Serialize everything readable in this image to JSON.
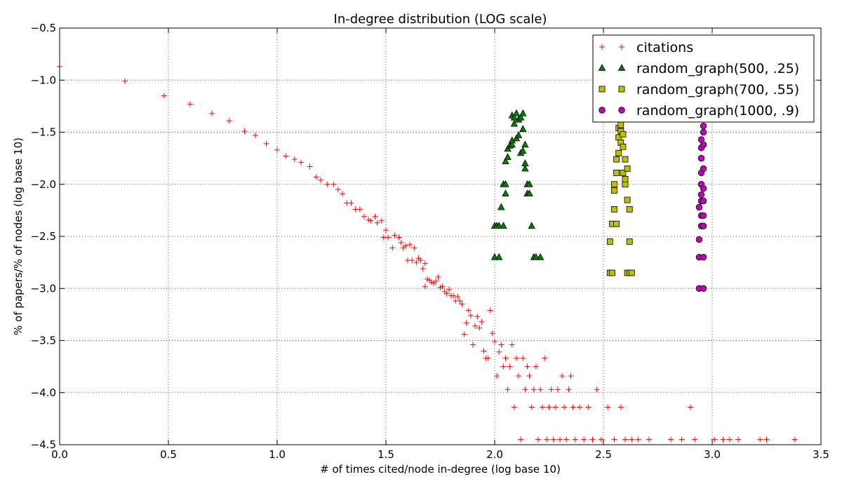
{
  "chart_data": {
    "type": "scatter",
    "title": "In-degree distribution (LOG scale)",
    "xlabel": "# of times cited/node in-degree (log base 10)",
    "ylabel": "% of papers/% of nodes (log base 10)",
    "xlim": [
      0.0,
      3.5
    ],
    "ylim": [
      -4.5,
      -0.5
    ],
    "xticks": [
      0.0,
      0.5,
      1.0,
      1.5,
      2.0,
      2.5,
      3.0,
      3.5
    ],
    "yticks": [
      -4.5,
      -4.0,
      -3.5,
      -3.0,
      -2.5,
      -2.0,
      -1.5,
      -1.0,
      -0.5
    ],
    "xtick_labels": [
      "0.0",
      "0.5",
      "1.0",
      "1.5",
      "2.0",
      "2.5",
      "3.0",
      "3.5"
    ],
    "ytick_labels": [
      "−4.5",
      "−4.0",
      "−3.5",
      "−3.0",
      "−2.5",
      "−2.0",
      "−1.5",
      "−1.0",
      "−0.5"
    ],
    "grid": true,
    "legend_position": "top-right",
    "series": [
      {
        "name": "citations",
        "marker": "plus",
        "color": "#ff0000",
        "points": [
          [
            0.0,
            -0.87
          ],
          [
            0.3,
            -1.01
          ],
          [
            0.48,
            -1.15
          ],
          [
            0.6,
            -1.23
          ],
          [
            0.7,
            -1.32
          ],
          [
            0.78,
            -1.39
          ],
          [
            0.85,
            -1.49
          ],
          [
            0.9,
            -1.53
          ],
          [
            0.95,
            -1.61
          ],
          [
            1.0,
            -1.67
          ],
          [
            1.04,
            -1.73
          ],
          [
            1.08,
            -1.76
          ],
          [
            1.11,
            -1.79
          ],
          [
            1.15,
            -1.83
          ],
          [
            1.18,
            -1.93
          ],
          [
            1.2,
            -1.96
          ],
          [
            1.23,
            -2.0
          ],
          [
            1.26,
            -2.0
          ],
          [
            1.28,
            -2.05
          ],
          [
            1.3,
            -2.09
          ],
          [
            1.32,
            -2.18
          ],
          [
            1.34,
            -2.18
          ],
          [
            1.36,
            -2.24
          ],
          [
            1.38,
            -2.24
          ],
          [
            1.4,
            -2.31
          ],
          [
            1.42,
            -2.34
          ],
          [
            1.43,
            -2.35
          ],
          [
            1.45,
            -2.31
          ],
          [
            1.46,
            -2.37
          ],
          [
            1.48,
            -2.35
          ],
          [
            1.49,
            -2.51
          ],
          [
            1.5,
            -2.44
          ],
          [
            1.51,
            -2.51
          ],
          [
            1.53,
            -2.61
          ],
          [
            1.54,
            -2.49
          ],
          [
            1.56,
            -2.51
          ],
          [
            1.57,
            -2.56
          ],
          [
            1.58,
            -2.61
          ],
          [
            1.59,
            -2.59
          ],
          [
            1.6,
            -2.73
          ],
          [
            1.61,
            -2.58
          ],
          [
            1.62,
            -2.73
          ],
          [
            1.63,
            -2.61
          ],
          [
            1.64,
            -2.75
          ],
          [
            1.65,
            -2.71
          ],
          [
            1.66,
            -2.73
          ],
          [
            1.67,
            -2.81
          ],
          [
            1.68,
            -2.98
          ],
          [
            1.68,
            -2.76
          ],
          [
            1.69,
            -2.91
          ],
          [
            1.7,
            -2.92
          ],
          [
            1.71,
            -2.94
          ],
          [
            1.72,
            -2.95
          ],
          [
            1.73,
            -2.93
          ],
          [
            1.74,
            -2.89
          ],
          [
            1.75,
            -2.99
          ],
          [
            1.76,
            -2.98
          ],
          [
            1.77,
            -3.03
          ],
          [
            1.78,
            -3.05
          ],
          [
            1.79,
            -3.01
          ],
          [
            1.8,
            -3.07
          ],
          [
            1.81,
            -3.07
          ],
          [
            1.82,
            -3.12
          ],
          [
            1.83,
            -3.08
          ],
          [
            1.84,
            -3.12
          ],
          [
            1.85,
            -3.15
          ],
          [
            1.86,
            -3.44
          ],
          [
            1.87,
            -3.33
          ],
          [
            1.88,
            -3.21
          ],
          [
            1.89,
            -3.26
          ],
          [
            1.9,
            -3.54
          ],
          [
            1.91,
            -3.36
          ],
          [
            1.92,
            -3.27
          ],
          [
            1.93,
            -3.38
          ],
          [
            1.94,
            -3.32
          ],
          [
            1.95,
            -3.6
          ],
          [
            1.96,
            -3.67
          ],
          [
            1.97,
            -3.67
          ],
          [
            1.98,
            -3.21
          ],
          [
            1.99,
            -3.43
          ],
          [
            2.0,
            -3.51
          ],
          [
            2.01,
            -3.84
          ],
          [
            2.02,
            -3.61
          ],
          [
            2.03,
            -3.54
          ],
          [
            2.04,
            -3.75
          ],
          [
            2.05,
            -3.67
          ],
          [
            2.06,
            -3.97
          ],
          [
            2.07,
            -3.75
          ],
          [
            2.08,
            -3.54
          ],
          [
            2.09,
            -4.14
          ],
          [
            2.1,
            -3.67
          ],
          [
            2.11,
            -3.84
          ],
          [
            2.12,
            -4.45
          ],
          [
            2.13,
            -3.67
          ],
          [
            2.14,
            -3.97
          ],
          [
            2.15,
            -3.75
          ],
          [
            2.16,
            -3.84
          ],
          [
            2.17,
            -4.14
          ],
          [
            2.18,
            -3.97
          ],
          [
            2.19,
            -3.75
          ],
          [
            2.2,
            -4.45
          ],
          [
            2.21,
            -3.97
          ],
          [
            2.22,
            -4.14
          ],
          [
            2.23,
            -3.67
          ],
          [
            2.24,
            -4.45
          ],
          [
            2.25,
            -4.14
          ],
          [
            2.26,
            -3.97
          ],
          [
            2.27,
            -4.45
          ],
          [
            2.28,
            -4.14
          ],
          [
            2.29,
            -3.97
          ],
          [
            2.3,
            -4.45
          ],
          [
            2.31,
            -3.84
          ],
          [
            2.32,
            -4.14
          ],
          [
            2.33,
            -4.45
          ],
          [
            2.34,
            -3.97
          ],
          [
            2.35,
            -3.84
          ],
          [
            2.36,
            -4.14
          ],
          [
            2.37,
            -4.45
          ],
          [
            2.39,
            -4.14
          ],
          [
            2.41,
            -4.45
          ],
          [
            2.43,
            -4.14
          ],
          [
            2.45,
            -4.45
          ],
          [
            2.47,
            -3.97
          ],
          [
            2.49,
            -4.45
          ],
          [
            2.52,
            -4.14
          ],
          [
            2.55,
            -4.45
          ],
          [
            2.58,
            -4.14
          ],
          [
            2.6,
            -4.45
          ],
          [
            2.63,
            -4.45
          ],
          [
            2.66,
            -4.45
          ],
          [
            2.71,
            -4.45
          ],
          [
            2.81,
            -4.45
          ],
          [
            2.86,
            -4.45
          ],
          [
            2.9,
            -4.14
          ],
          [
            2.92,
            -4.45
          ],
          [
            3.01,
            -4.45
          ],
          [
            3.05,
            -4.45
          ],
          [
            3.08,
            -4.45
          ],
          [
            3.12,
            -4.45
          ],
          [
            3.22,
            -4.45
          ],
          [
            3.25,
            -4.45
          ],
          [
            3.38,
            -4.45
          ]
        ]
      },
      {
        "name": "random_graph(500, .25)",
        "marker": "triangle",
        "color": "#008000",
        "points": [
          [
            2.0,
            -2.7
          ],
          [
            2.0,
            -2.4
          ],
          [
            2.01,
            -2.4
          ],
          [
            2.02,
            -2.7
          ],
          [
            2.02,
            -2.4
          ],
          [
            2.03,
            -2.22
          ],
          [
            2.04,
            -2.0
          ],
          [
            2.04,
            -2.4
          ],
          [
            2.05,
            -1.78
          ],
          [
            2.05,
            -2.09
          ],
          [
            2.05,
            -2.0
          ],
          [
            2.06,
            -1.66
          ],
          [
            2.06,
            -1.74
          ],
          [
            2.07,
            -1.63
          ],
          [
            2.08,
            -1.62
          ],
          [
            2.08,
            -1.58
          ],
          [
            2.08,
            -1.34
          ],
          [
            2.09,
            -1.42
          ],
          [
            2.09,
            -1.36
          ],
          [
            2.1,
            -1.56
          ],
          [
            2.1,
            -1.32
          ],
          [
            2.11,
            -1.38
          ],
          [
            2.11,
            -1.53
          ],
          [
            2.12,
            -1.36
          ],
          [
            2.12,
            -1.7
          ],
          [
            2.13,
            -1.47
          ],
          [
            2.13,
            -1.32
          ],
          [
            2.13,
            -1.68
          ],
          [
            2.14,
            -1.62
          ],
          [
            2.14,
            -1.85
          ],
          [
            2.14,
            -1.8
          ],
          [
            2.15,
            -2.09
          ],
          [
            2.15,
            -2.0
          ],
          [
            2.16,
            -2.09
          ],
          [
            2.16,
            -2.0
          ],
          [
            2.17,
            -2.4
          ],
          [
            2.18,
            -2.7
          ],
          [
            2.19,
            -2.7
          ],
          [
            2.21,
            -2.7
          ]
        ]
      },
      {
        "name": "random_graph(700, .55)",
        "marker": "square",
        "color": "#bfbf00",
        "points": [
          [
            2.53,
            -2.85
          ],
          [
            2.53,
            -2.55
          ],
          [
            2.54,
            -2.85
          ],
          [
            2.54,
            -2.38
          ],
          [
            2.55,
            -2.24
          ],
          [
            2.55,
            -2.06
          ],
          [
            2.55,
            -2.0
          ],
          [
            2.56,
            -1.89
          ],
          [
            2.56,
            -2.38
          ],
          [
            2.56,
            -1.76
          ],
          [
            2.57,
            -1.55
          ],
          [
            2.57,
            -1.46
          ],
          [
            2.57,
            -1.7
          ],
          [
            2.58,
            -1.49
          ],
          [
            2.58,
            -1.43
          ],
          [
            2.58,
            -1.6
          ],
          [
            2.59,
            -1.52
          ],
          [
            2.59,
            -1.64
          ],
          [
            2.59,
            -1.89
          ],
          [
            2.6,
            -1.76
          ],
          [
            2.6,
            -2.0
          ],
          [
            2.6,
            -1.95
          ],
          [
            2.61,
            -1.85
          ],
          [
            2.61,
            -2.15
          ],
          [
            2.61,
            -2.85
          ],
          [
            2.62,
            -2.24
          ],
          [
            2.62,
            -2.55
          ],
          [
            2.62,
            -2.85
          ],
          [
            2.63,
            -2.85
          ]
        ]
      },
      {
        "name": "random_graph(1000, .9)",
        "marker": "circle",
        "color": "#bf00bf",
        "points": [
          [
            2.94,
            -3.0
          ],
          [
            2.94,
            -2.7
          ],
          [
            2.94,
            -2.53
          ],
          [
            2.94,
            -2.22
          ],
          [
            2.95,
            -2.4
          ],
          [
            2.95,
            -2.3
          ],
          [
            2.95,
            -2.16
          ],
          [
            2.95,
            -2.1
          ],
          [
            2.95,
            -2.0
          ],
          [
            2.95,
            -1.89
          ],
          [
            2.95,
            -1.75
          ],
          [
            2.95,
            -1.65
          ],
          [
            2.95,
            -1.57
          ],
          [
            2.96,
            -1.44
          ],
          [
            2.96,
            -1.5
          ],
          [
            2.96,
            -1.62
          ],
          [
            2.96,
            -1.85
          ],
          [
            2.96,
            -2.04
          ],
          [
            2.96,
            -2.16
          ],
          [
            2.96,
            -2.3
          ],
          [
            2.96,
            -2.4
          ],
          [
            2.96,
            -2.7
          ],
          [
            2.96,
            -3.0
          ]
        ]
      }
    ]
  }
}
